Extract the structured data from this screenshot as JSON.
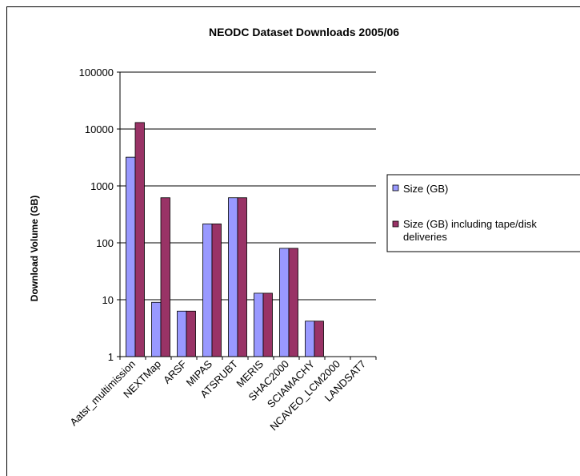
{
  "chart_data": {
    "type": "bar",
    "title": "NEODC Dataset Downloads 2005/06",
    "xlabel": "",
    "ylabel": "Download Volume (GB)",
    "y_scale": "log",
    "ylim": [
      1,
      100000
    ],
    "y_ticks": [
      "1",
      "10",
      "100",
      "1000",
      "10000",
      "100000"
    ],
    "grid": true,
    "legend_position": "right",
    "categories": [
      "Aatsr_multimission",
      "NEXTMap",
      "ARSF",
      "MIPAS",
      "ATSRUBT",
      "MERIS",
      "SHAC2000",
      "SCIAMACHY",
      "NCAVEO_LCM2000",
      "LANDSAT7"
    ],
    "series": [
      {
        "name": "Size (GB)",
        "color": "#9999ff",
        "values": [
          3200,
          9,
          6.3,
          215,
          620,
          13,
          80,
          4.2,
          null,
          null
        ]
      },
      {
        "name_lines": [
          "Size (GB) including tape/disk",
          "deliveries"
        ],
        "color": "#993366",
        "values": [
          13000,
          620,
          6.3,
          215,
          620,
          13,
          80,
          4.2,
          null,
          null
        ]
      }
    ]
  }
}
